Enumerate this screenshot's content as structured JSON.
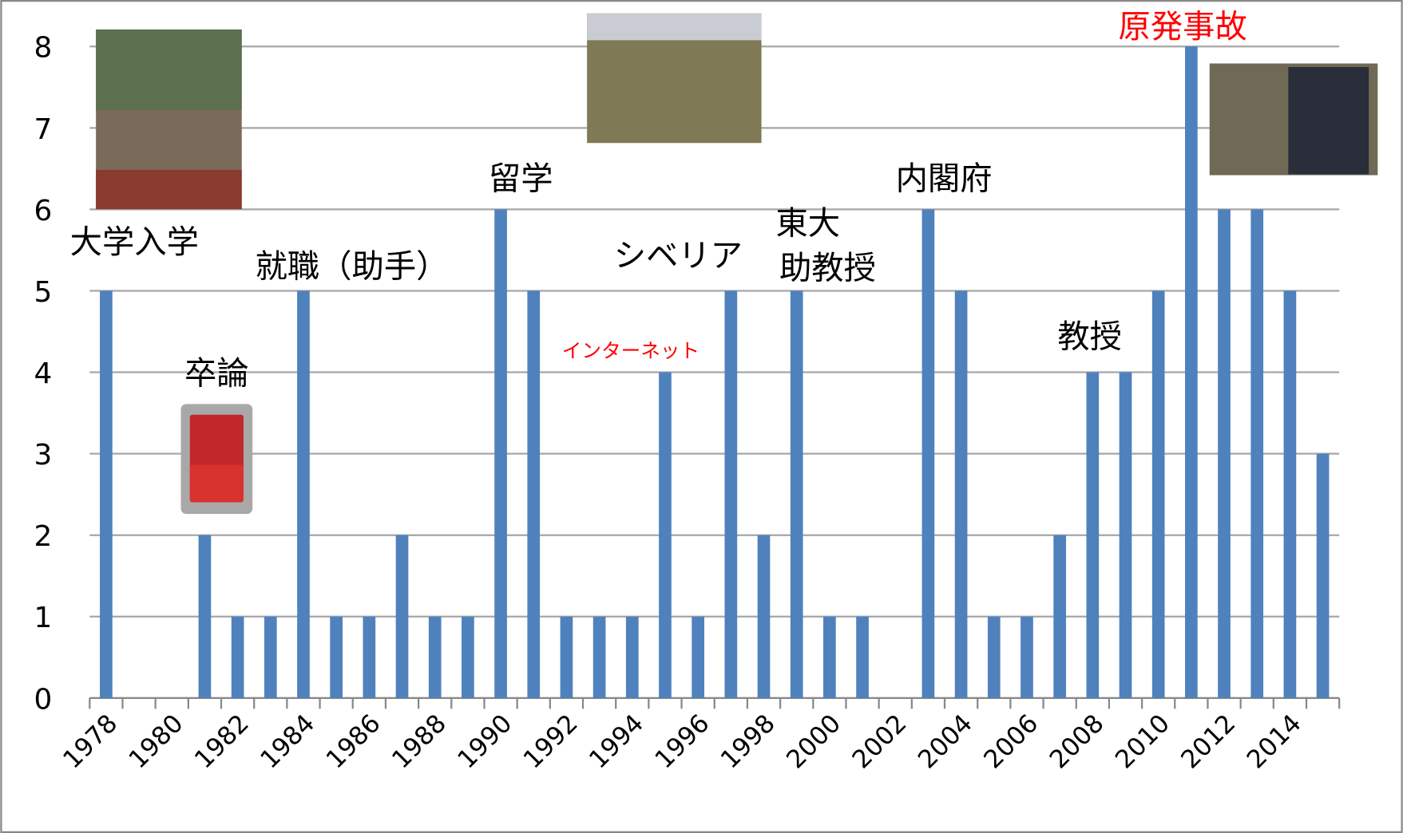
{
  "chart_data": {
    "type": "bar",
    "categories": [
      "1978",
      null,
      "1980",
      null,
      "1982",
      null,
      "1984",
      null,
      "1986",
      null,
      "1988",
      null,
      "1990",
      null,
      "1992",
      null,
      "1994",
      null,
      "1996",
      null,
      "1998",
      null,
      "2000",
      null,
      "2002",
      null,
      "2004",
      null,
      "2006",
      null,
      "2008",
      null,
      "2010",
      null,
      "2012",
      null,
      "2014",
      null
    ],
    "values": [
      5,
      0,
      0,
      2,
      1,
      1,
      5,
      1,
      1,
      2,
      1,
      1,
      6,
      5,
      1,
      1,
      1,
      4,
      1,
      5,
      2,
      5,
      1,
      1,
      0,
      6,
      5,
      1,
      1,
      2,
      4,
      4,
      5,
      8,
      6,
      6,
      5,
      3
    ],
    "color": "#4f81bd",
    "ylim": [
      0,
      8
    ],
    "yticks": [
      0,
      1,
      2,
      3,
      4,
      5,
      6,
      7,
      8
    ],
    "grid": true,
    "annotations": [
      {
        "text": "大学入学",
        "color": "#000000"
      },
      {
        "text": "卒論",
        "color": "#000000"
      },
      {
        "text": "就職（助手）",
        "color": "#000000"
      },
      {
        "text": "留学",
        "color": "#000000"
      },
      {
        "text": "インターネット",
        "color": "#ff0000"
      },
      {
        "text": "シベリア",
        "color": "#000000"
      },
      {
        "text": "東大",
        "color": "#000000"
      },
      {
        "text": "助教授",
        "color": "#000000"
      },
      {
        "text": "内閣府",
        "color": "#000000"
      },
      {
        "text": "教授",
        "color": "#000000"
      },
      {
        "text": "原発事故",
        "color": "#ff0000"
      }
    ]
  }
}
